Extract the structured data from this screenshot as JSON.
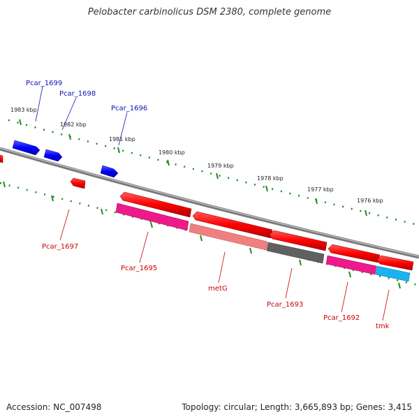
{
  "title": "Pelobacter carbinolicus DSM 2380, complete genome",
  "footer": {
    "accession": "Accession: NC_007498",
    "summary": "Topology: circular; Length: 3,665,893 bp; Genes: 3,415"
  },
  "ticks": [
    "1983 kbp",
    "1982 kbp",
    "1981 kbp",
    "1980 kbp",
    "1979 kbp",
    "1978 kbp",
    "1977 kbp",
    "1976 kbp"
  ],
  "genes_top": [
    "Pcar_1699",
    "Pcar_1698",
    "Pcar_1696"
  ],
  "genes_bottom": [
    "Pcar_1697",
    "Pcar_1695",
    "metG",
    "Pcar_1693",
    "Pcar_1692",
    "tmk"
  ],
  "colors": {
    "forward": "#0a0aff",
    "reverse": "#ff0000",
    "backbone": "#888888",
    "tick": "#1e8c1e",
    "label_top": "#1010b8",
    "label_bottom": "#cc0000"
  }
}
